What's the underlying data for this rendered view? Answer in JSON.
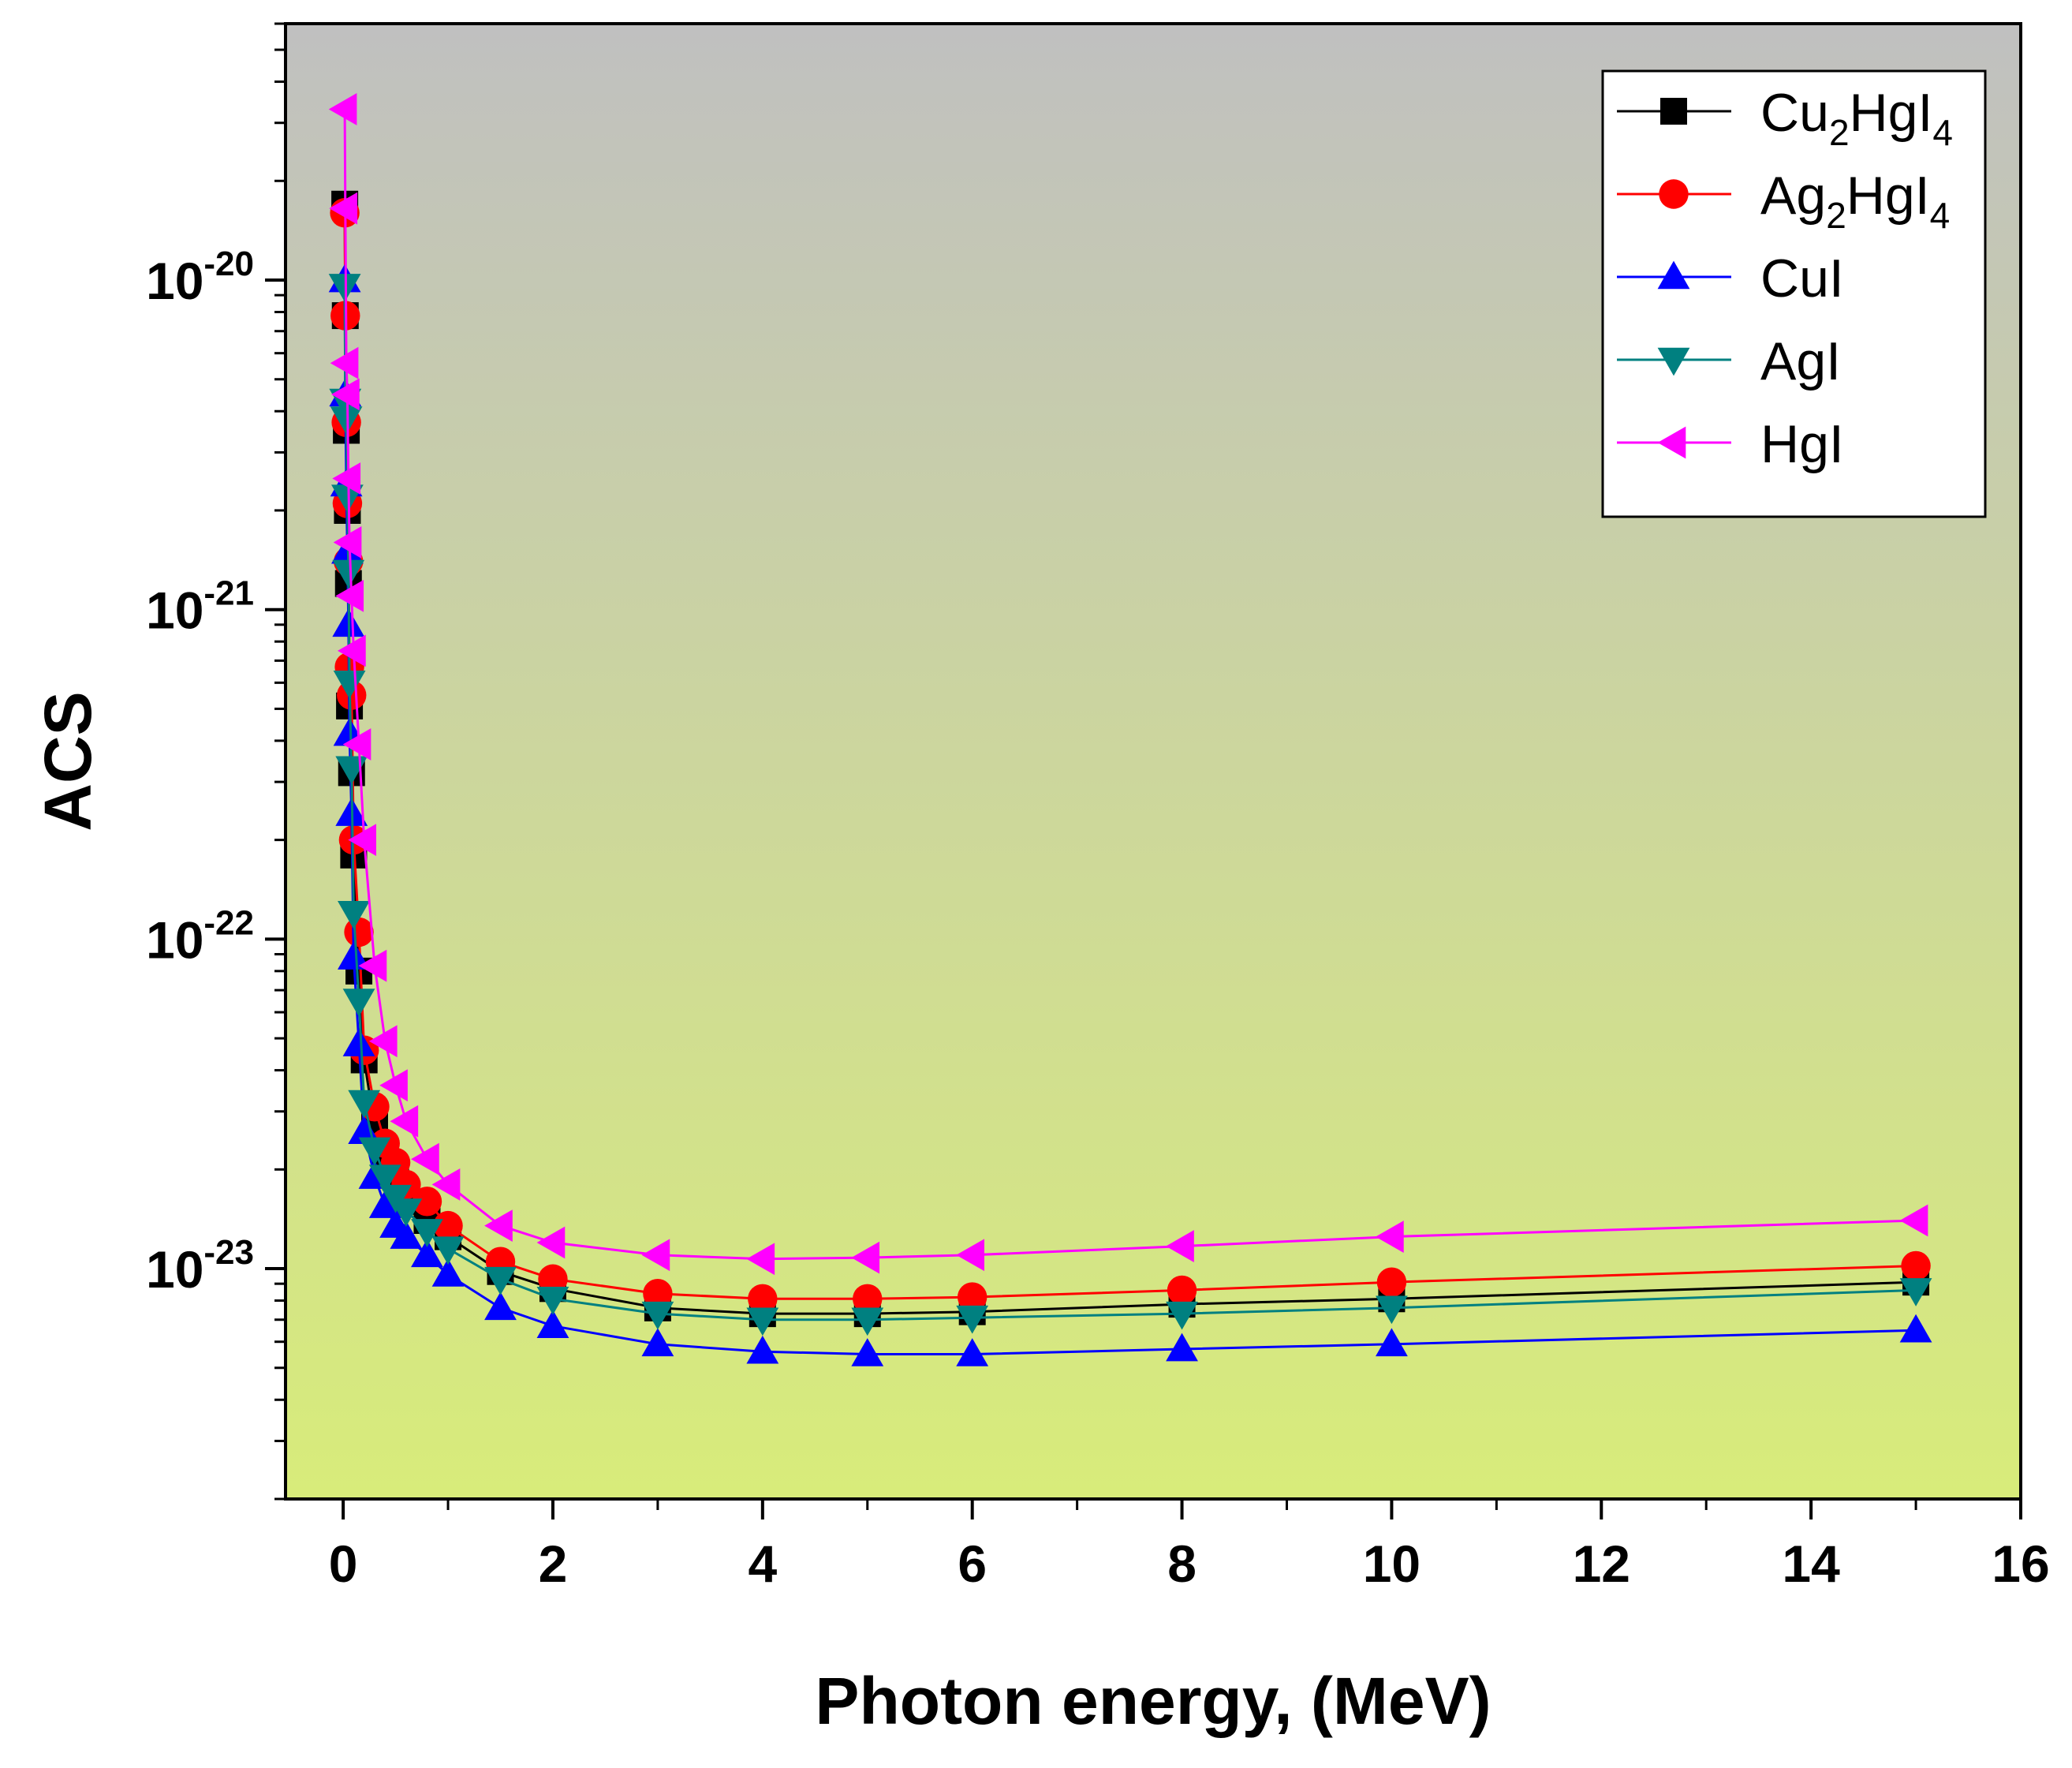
{
  "chart_data": {
    "type": "line",
    "title": "",
    "xlabel": "Photon energy, (MeV)",
    "ylabel": "ACS",
    "xlim": [
      -0.55,
      16
    ],
    "ylog": true,
    "ylim": [
      2e-24,
      6e-20
    ],
    "xticks": [
      0,
      2,
      4,
      6,
      8,
      10,
      12,
      14,
      16
    ],
    "xtick_labels": [
      "0",
      "2",
      "4",
      "6",
      "8",
      "10",
      "12",
      "14",
      "16"
    ],
    "yticks": [
      {
        "value": 1e-20,
        "base": "10",
        "exp": "-20"
      },
      {
        "value": 1e-21,
        "base": "10",
        "exp": "-21"
      },
      {
        "value": 1e-22,
        "base": "10",
        "exp": "-22"
      },
      {
        "value": 1e-23,
        "base": "10",
        "exp": "-23"
      }
    ],
    "grid": false,
    "legend_position": "top-right",
    "x": [
      0.015,
      0.02,
      0.03,
      0.04,
      0.05,
      0.06,
      0.08,
      0.1,
      0.15,
      0.2,
      0.3,
      0.4,
      0.5,
      0.6,
      0.8,
      1.0,
      1.5,
      2.0,
      3.0,
      4.0,
      5.0,
      6.0,
      8.0,
      10.0,
      15.0
    ],
    "series": [
      {
        "name": "Cu2HgI4",
        "label_main": "Cu",
        "label_sub1": "2",
        "label_mid": "HgI",
        "label_sub2": "4",
        "color": "#000000",
        "marker": "square",
        "values": [
          1.7e-20,
          7.8e-21,
          3.5e-21,
          2e-21,
          1.2e-21,
          5.1e-22,
          3.2e-22,
          1.8e-22,
          8e-23,
          4.3e-23,
          2.7e-23,
          2.2e-23,
          1.9e-23,
          1.6e-23,
          1.4e-23,
          1.25e-23,
          9.8e-24,
          8.7e-24,
          7.6e-24,
          7.3e-24,
          7.3e-24,
          7.4e-24,
          7.8e-24,
          8.1e-24,
          9.1e-24
        ]
      },
      {
        "name": "Ag2HgI4",
        "label_main": "Ag",
        "label_sub1": "2",
        "label_mid": "HgI",
        "label_sub2": "4",
        "color": "#ff0000",
        "marker": "circle",
        "values": [
          1.6e-20,
          7.8e-21,
          3.7e-21,
          2.1e-21,
          1.4e-21,
          6.7e-22,
          5.5e-22,
          2e-22,
          1.05e-22,
          4.6e-23,
          3.1e-23,
          2.4e-23,
          2.1e-23,
          1.8e-23,
          1.6e-23,
          1.35e-23,
          1.05e-23,
          9.3e-24,
          8.4e-24,
          8.1e-24,
          8.1e-24,
          8.2e-24,
          8.6e-24,
          9.1e-24,
          1.02e-23
        ]
      },
      {
        "name": "CuI",
        "label_main": "CuI",
        "label_sub1": "",
        "label_mid": "",
        "label_sub2": "",
        "color": "#0000ff",
        "marker": "triangle-up",
        "values": [
          1e-20,
          4.5e-21,
          2.4e-21,
          1.5e-21,
          9e-22,
          4.2e-22,
          2.4e-22,
          8.8e-23,
          4.8e-23,
          2.6e-23,
          1.9e-23,
          1.55e-23,
          1.35e-23,
          1.25e-23,
          1.1e-23,
          9.6e-24,
          7.6e-24,
          6.7e-24,
          5.9e-24,
          5.6e-24,
          5.5e-24,
          5.5e-24,
          5.7e-24,
          5.9e-24,
          6.5e-24
        ]
      },
      {
        "name": "AgI",
        "label_main": "AgI",
        "label_sub1": "",
        "label_mid": "",
        "label_sub2": "",
        "color": "#008080",
        "marker": "triangle-down",
        "values": [
          9.6e-21,
          4.3e-21,
          3.8e-21,
          2.2e-21,
          1.3e-21,
          6e-22,
          3.3e-22,
          1.2e-22,
          6.5e-23,
          3.2e-23,
          2.3e-23,
          1.9e-23,
          1.65e-23,
          1.5e-23,
          1.3e-23,
          1.15e-23,
          9.3e-24,
          8.1e-24,
          7.3e-24,
          7e-24,
          7e-24,
          7.1e-24,
          7.3e-24,
          7.6e-24,
          8.6e-24
        ]
      },
      {
        "name": "HgI",
        "label_main": "HgI",
        "label_sub1": "",
        "label_mid": "",
        "label_sub2": "",
        "color": "#ff00ff",
        "marker": "triangle-left",
        "values": [
          3.3e-20,
          1.65e-20,
          5.6e-21,
          4.5e-21,
          2.5e-21,
          1.6e-21,
          1.1e-21,
          7.5e-22,
          3.9e-22,
          2e-22,
          8.3e-23,
          4.9e-23,
          3.6e-23,
          2.8e-23,
          2.15e-23,
          1.8e-23,
          1.35e-23,
          1.2e-23,
          1.1e-23,
          1.07e-23,
          1.08e-23,
          1.1e-23,
          1.17e-23,
          1.25e-23,
          1.4e-23
        ]
      }
    ]
  }
}
